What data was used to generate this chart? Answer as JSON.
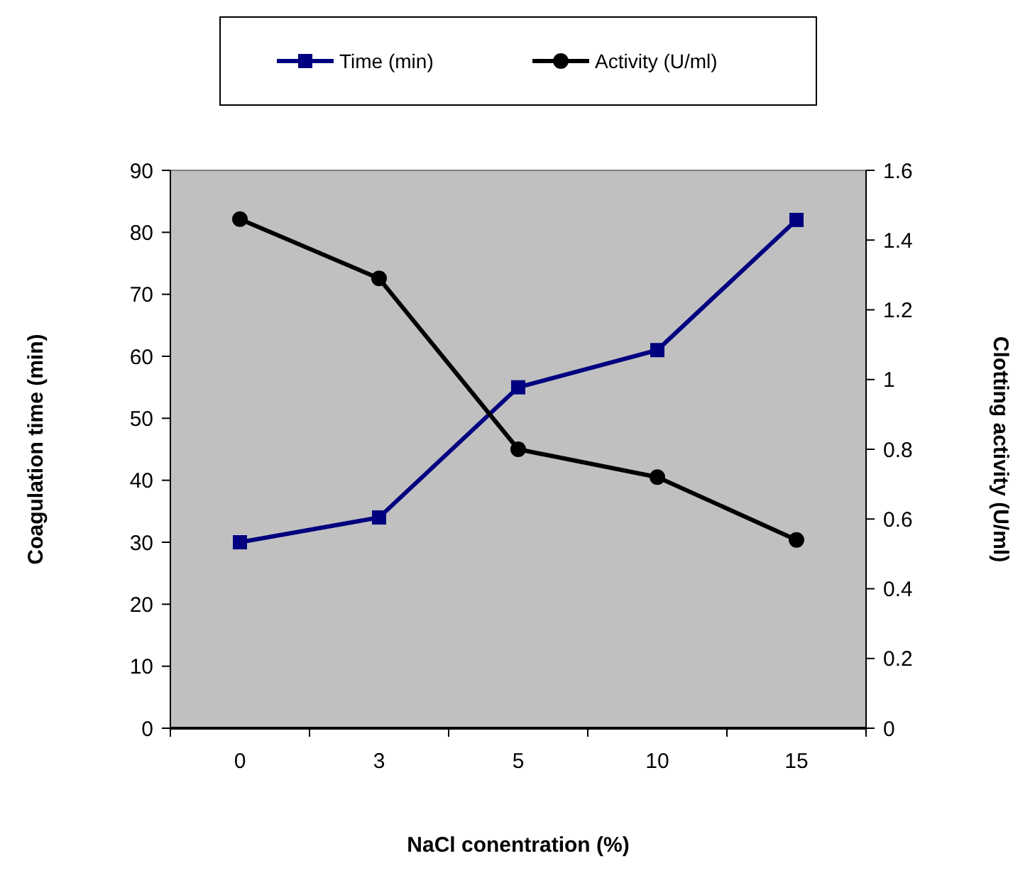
{
  "chart_data": {
    "type": "line",
    "xlabel": "NaCl conentration (%)",
    "ylabel": "Coagulation time (min)",
    "y2label": "Clotting activity (U/ml)",
    "categories": [
      "0",
      "3",
      "5",
      "10",
      "15"
    ],
    "series": [
      {
        "name": "Time (min)",
        "color": "#000080",
        "values": [
          30,
          34,
          55,
          61,
          82
        ],
        "marker": "square"
      },
      {
        "name": "Activity (U/ml)",
        "color": "#000000",
        "values": [
          1.46,
          1.29,
          0.8,
          0.72,
          0.54
        ],
        "marker": "circle",
        "axis": "y2"
      }
    ],
    "ylim": [
      0,
      90
    ],
    "yticks": [
      0,
      10,
      20,
      30,
      40,
      50,
      60,
      70,
      80,
      90
    ],
    "y2lim": [
      0,
      1.6
    ],
    "y2ticks": [
      0,
      0.2,
      0.4,
      0.6,
      0.8,
      1,
      1.2,
      1.4,
      1.6
    ],
    "grid": false,
    "legend": "top",
    "line_style": "solid"
  }
}
